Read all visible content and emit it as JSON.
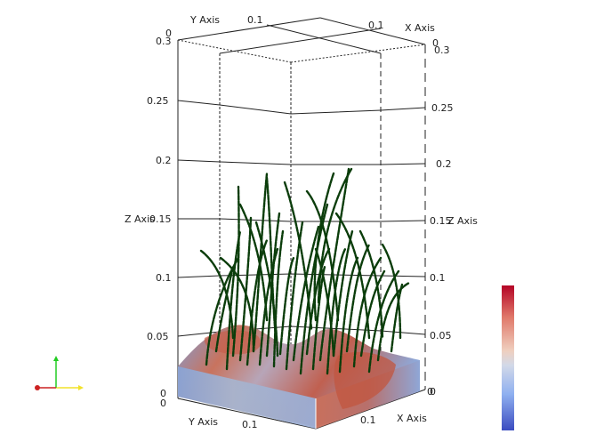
{
  "axes": {
    "y_axis_title": "Y Axis",
    "x_axis_title": "X Axis",
    "z_axis_title": "Z Axis",
    "top_y_labels": [
      "0",
      "0.1"
    ],
    "top_x_labels": [
      "0.1",
      "0"
    ],
    "left_z_labels": [
      "0.3",
      "0.25",
      "0.2",
      "0.15",
      "0.1",
      "0.05",
      "0"
    ],
    "right_z_labels": [
      "0.3",
      "0.25",
      "0.2",
      "0.15",
      "0.1",
      "0.05",
      "0"
    ],
    "bottom_y_labels": [
      "0",
      "0.1"
    ],
    "bottom_x_labels": [
      "0.1",
      "0"
    ]
  },
  "colors": {
    "grass": "#0b3d0b",
    "terrain_warm": "#c8735e",
    "terrain_cool": "#7f9fd8",
    "orientation_x": "#f2e22a",
    "orientation_y": "#22cc22",
    "orientation_z": "#cc2222"
  },
  "colorbar": {
    "scale": "coolwarm"
  }
}
